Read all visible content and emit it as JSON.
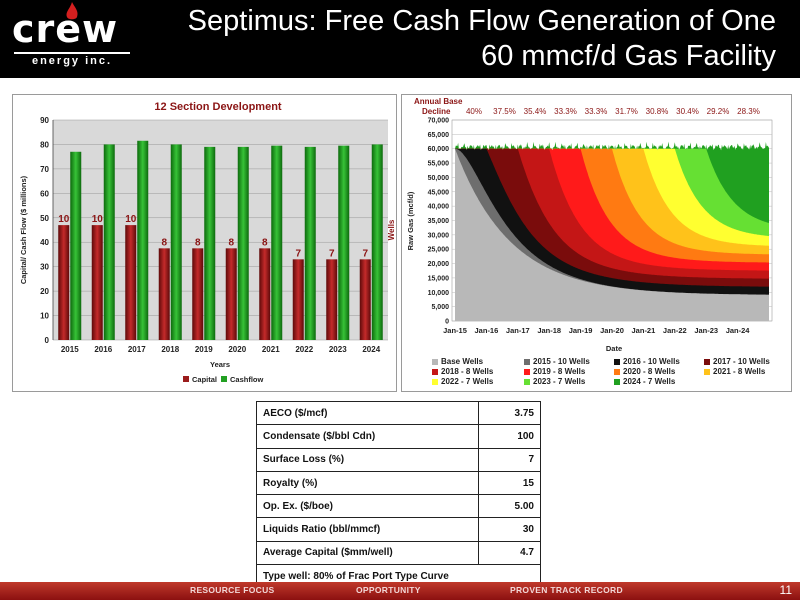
{
  "header": {
    "title_line1": "Septimus: Free Cash Flow Generation of One",
    "title_line2": "60 mmcf/d Gas Facility",
    "logo_word": "crew",
    "logo_sub": "energy inc."
  },
  "chart_data": [
    {
      "type": "bar",
      "title": "12 Section Development",
      "xlabel": "Years",
      "ylabel": "Capital/ Cash Flow ($ millions)",
      "ylabel2": "Wells",
      "ylim": [
        0,
        90
      ],
      "yticks": [
        0,
        10,
        20,
        30,
        40,
        50,
        60,
        70,
        80,
        90
      ],
      "categories": [
        "2015",
        "2016",
        "2017",
        "2018",
        "2019",
        "2020",
        "2021",
        "2022",
        "2023",
        "2024"
      ],
      "series": [
        {
          "name": "Capital",
          "color": "#9b1c1c",
          "values": [
            47,
            47,
            47,
            37.5,
            37.5,
            37.5,
            37.5,
            33,
            33,
            33
          ]
        },
        {
          "name": "Cashflow",
          "color": "#22a022",
          "values": [
            77,
            80,
            81.5,
            80,
            79,
            79,
            79.5,
            79,
            79.5,
            80
          ]
        }
      ],
      "data_labels": [
        "10",
        "10",
        "10",
        "8",
        "8",
        "8",
        "8",
        "7",
        "7",
        "7"
      ],
      "legend": "bottom"
    },
    {
      "type": "area",
      "title_line1": "Annual Base",
      "title_line2": "Decline",
      "decline_labels": [
        "40%",
        "37.5%",
        "35.4%",
        "33.3%",
        "33.3%",
        "31.7%",
        "30.8%",
        "30.4%",
        "29.2%",
        "28.3%"
      ],
      "xlabel": "Date",
      "ylabel": "Raw Gas (mcf/d)",
      "ylim": [
        0,
        70000
      ],
      "yticks": [
        "0",
        "5,000",
        "10,000",
        "15,000",
        "20,000",
        "25,000",
        "30,000",
        "35,000",
        "40,000",
        "45,000",
        "50,000",
        "55,000",
        "60,000",
        "65,000",
        "70,000"
      ],
      "xticks": [
        "Jan-15",
        "Jan-16",
        "Jan-17",
        "Jan-18",
        "Jan-19",
        "Jan-20",
        "Jan-21",
        "Jan-22",
        "Jan-23",
        "Jan-24"
      ],
      "plateau": 60000,
      "base_end": 9000,
      "series": [
        {
          "name": "Base Wells",
          "color": "#b8b8b8"
        },
        {
          "name": "2015 - 10 Wells",
          "color": "#6e6e6e"
        },
        {
          "name": "2016 - 10 Wells",
          "color": "#111111"
        },
        {
          "name": "2017 - 10 Wells",
          "color": "#7a0c0c"
        },
        {
          "name": "2018 - 8 Wells",
          "color": "#c41616"
        },
        {
          "name": "2019 - 8 Wells",
          "color": "#ff1a1a"
        },
        {
          "name": "2020 - 8 Wells",
          "color": "#ff7a12"
        },
        {
          "name": "2021 - 8 Wells",
          "color": "#ffc21a"
        },
        {
          "name": "2022 - 7 Wells",
          "color": "#ffff30"
        },
        {
          "name": "2023 - 7 Wells",
          "color": "#66e033"
        },
        {
          "name": "2024 - 7 Wells",
          "color": "#20a020"
        }
      ],
      "legend": "bottom"
    }
  ],
  "assumptions": [
    {
      "label": "AECO ($/mcf)",
      "value": "3.75"
    },
    {
      "label": "Condensate ($/bbl Cdn)",
      "value": "100"
    },
    {
      "label": "Surface Loss (%)",
      "value": "7"
    },
    {
      "label": "Royalty (%)",
      "value": "15"
    },
    {
      "label": "Op. Ex. ($/boe)",
      "value": "5.00"
    },
    {
      "label": "Liquids Ratio (bbl/mmcf)",
      "value": "30"
    },
    {
      "label": "Average Capital ($mm/well)",
      "value": "4.7"
    }
  ],
  "assumptions_note": "Type well:  80% of Frac Port Type Curve",
  "footer": {
    "items": [
      "RESOURCE FOCUS",
      "OPPORTUNITY",
      "PROVEN TRACK RECORD"
    ],
    "page": "11"
  }
}
